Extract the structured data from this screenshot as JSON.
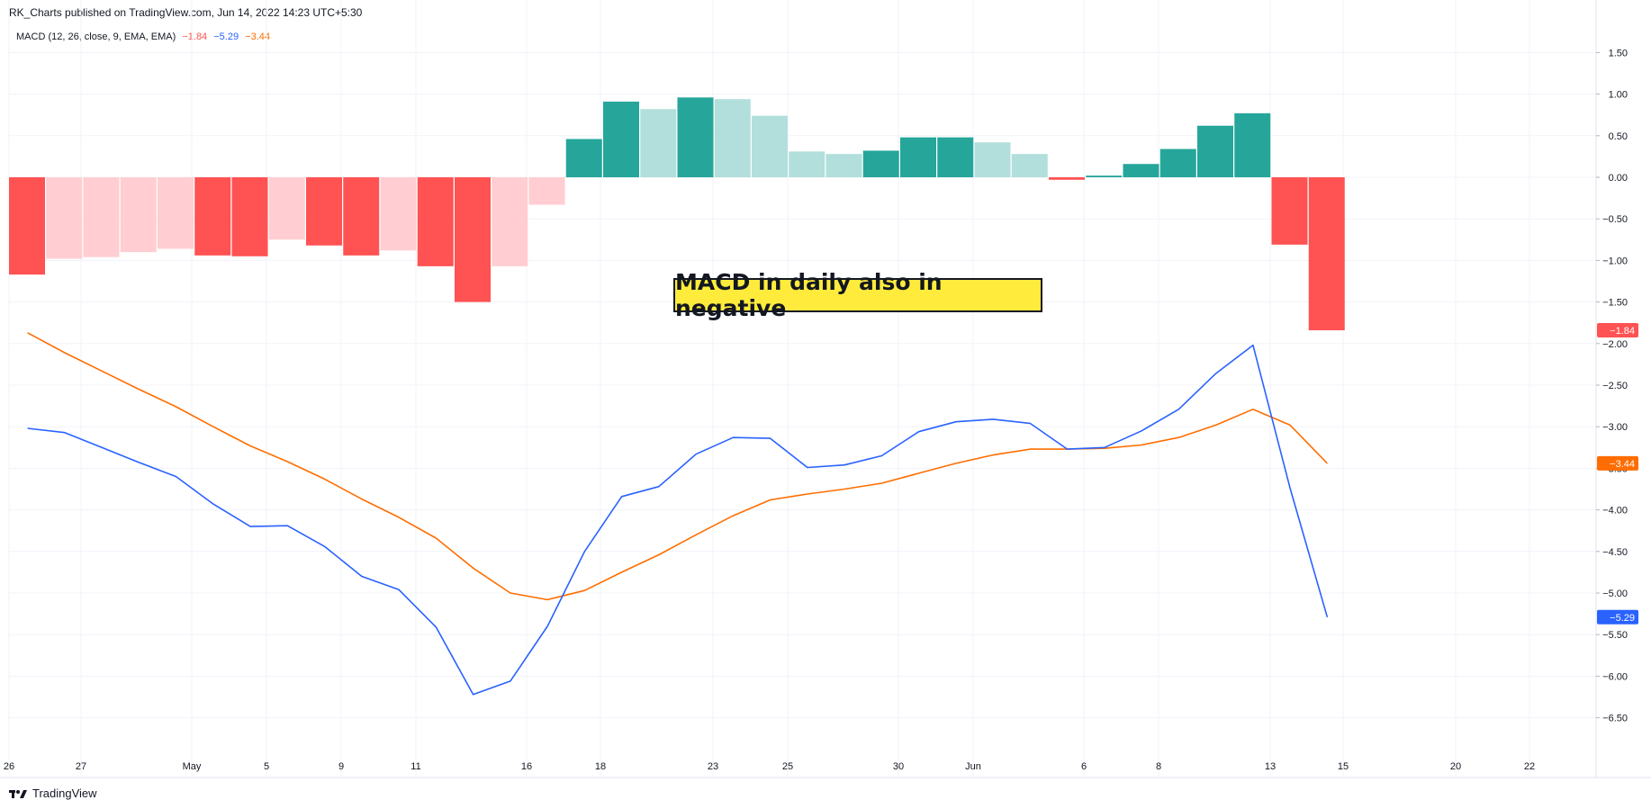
{
  "header": {
    "text": "RK_Charts published on TradingView.com, Jun 14, 2022 14:23 UTC+5:30"
  },
  "legend": {
    "name": "MACD (12, 26, close, 9, EMA, EMA)",
    "hist_value": "−1.84",
    "macd_value": "−5.29",
    "signal_value": "−3.44"
  },
  "annotation": {
    "text": "MACD in daily also in negative"
  },
  "footer": {
    "brand": "TradingView"
  },
  "colors": {
    "hist_neg_strong": "#ff5252",
    "hist_neg_light": "#ffcdd2",
    "hist_pos_strong": "#26a69a",
    "hist_pos_light": "#b2dfdb",
    "macd_line": "#2962ff",
    "signal_line": "#ff6d00",
    "grid": "#f0f3fa",
    "axis_text": "#131722"
  },
  "chart_data": {
    "type": "line",
    "y_axis_ticks": [
      "1.50",
      "1.00",
      "0.50",
      "0.00",
      "−0.50",
      "−1.00",
      "−1.50",
      "−2.00",
      "−2.50",
      "−3.00",
      "−3.50",
      "−4.00",
      "−4.50",
      "−5.00",
      "−5.50",
      "−6.00",
      "−6.50"
    ],
    "ylim": [
      -7.0,
      1.9
    ],
    "x_axis_labels": [
      "26",
      "27",
      "May",
      "5",
      "9",
      "11",
      "16",
      "18",
      "23",
      "25",
      "30",
      "Jun",
      "6",
      "8",
      "13",
      "15",
      "20",
      "22"
    ],
    "last_value_labels": {
      "histogram": "−1.84",
      "signal": "−3.44",
      "macd": "−5.29"
    },
    "series": [
      {
        "name": "Histogram",
        "kind": "histogram",
        "values": [
          -1.17,
          -0.98,
          -0.96,
          -0.9,
          -0.86,
          -0.94,
          -0.95,
          -0.75,
          -0.82,
          -0.94,
          -0.88,
          -1.07,
          -1.5,
          -1.07,
          -0.33,
          0.46,
          0.91,
          0.82,
          0.96,
          0.94,
          0.74,
          0.31,
          0.28,
          0.32,
          0.48,
          0.48,
          0.42,
          0.28,
          -0.03,
          0.02,
          0.16,
          0.34,
          0.62,
          0.77,
          -0.81,
          -1.84
        ],
        "shade": [
          "strong",
          "light",
          "light",
          "light",
          "light",
          "strong",
          "strong",
          "light",
          "strong",
          "strong",
          "light",
          "strong",
          "strong",
          "light",
          "light",
          "strong",
          "strong",
          "light",
          "strong",
          "light",
          "light",
          "light",
          "light",
          "strong",
          "strong",
          "strong",
          "light",
          "light",
          "strong",
          "strong",
          "strong",
          "strong",
          "strong",
          "strong",
          "strong",
          "strong"
        ]
      },
      {
        "name": "MACD",
        "kind": "line",
        "values": [
          -3.02,
          -3.07,
          -3.25,
          -3.43,
          -3.6,
          -3.93,
          -4.2,
          -4.19,
          -4.44,
          -4.8,
          -4.96,
          -5.41,
          -6.22,
          -6.06,
          -5.4,
          -4.5,
          -3.84,
          -3.72,
          -3.33,
          -3.13,
          -3.14,
          -3.49,
          -3.46,
          -3.35,
          -3.06,
          -2.94,
          -2.91,
          -2.96,
          -3.27,
          -3.25,
          -3.05,
          -2.79,
          -2.36,
          -2.02,
          -3.74,
          -5.29
        ]
      },
      {
        "name": "Signal",
        "kind": "line",
        "values": [
          -1.87,
          -2.11,
          -2.33,
          -2.55,
          -2.76,
          -3.0,
          -3.23,
          -3.42,
          -3.63,
          -3.87,
          -4.09,
          -4.34,
          -4.7,
          -5.0,
          -5.08,
          -4.97,
          -4.75,
          -4.54,
          -4.3,
          -4.07,
          -3.88,
          -3.81,
          -3.75,
          -3.68,
          -3.56,
          -3.44,
          -3.34,
          -3.27,
          -3.27,
          -3.26,
          -3.22,
          -3.13,
          -2.98,
          -2.79,
          -2.98,
          -3.44
        ]
      }
    ]
  }
}
